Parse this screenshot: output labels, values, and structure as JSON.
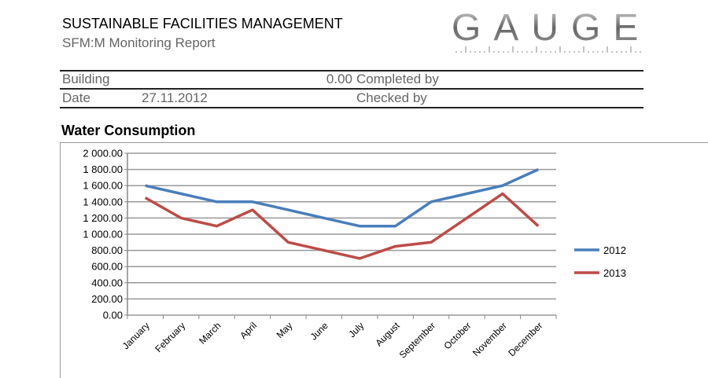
{
  "header": {
    "title": "SUSTAINABLE FACILITIES MANAGEMENT",
    "subtitle": "SFM:M Monitoring  Report",
    "logo": "GAUGE"
  },
  "info": {
    "building_label": "Building",
    "building_value": "0.00",
    "completed_by_label": "Completed by",
    "date_label": "Date",
    "date_value": "27.11.2012",
    "checked_by_label": "Checked by"
  },
  "chart_data": {
    "type": "line",
    "title": "Water Consumption",
    "categories": [
      "January",
      "February",
      "March",
      "April",
      "May",
      "June",
      "July",
      "August",
      "September",
      "October",
      "November",
      "December"
    ],
    "series": [
      {
        "name": "2012",
        "color": "#4A7EBB",
        "values": [
          1600,
          1500,
          1400,
          1400,
          1300,
          1200,
          1100,
          1100,
          1400,
          1500,
          1600,
          1800
        ]
      },
      {
        "name": "2013",
        "color": "#BE4B48",
        "values": [
          1450,
          1200,
          1100,
          1300,
          900,
          800,
          700,
          850,
          900,
          1200,
          1500,
          1100
        ]
      }
    ],
    "ylim": [
      0,
      2000
    ],
    "yticks": [
      "0.00",
      "200.00",
      "400.00",
      "600.00",
      "800.00",
      "1 000.00",
      "1 200.00",
      "1 400.00",
      "1 600.00",
      "1 800.00",
      "2 000.00"
    ],
    "grid": true,
    "legend": "right"
  }
}
